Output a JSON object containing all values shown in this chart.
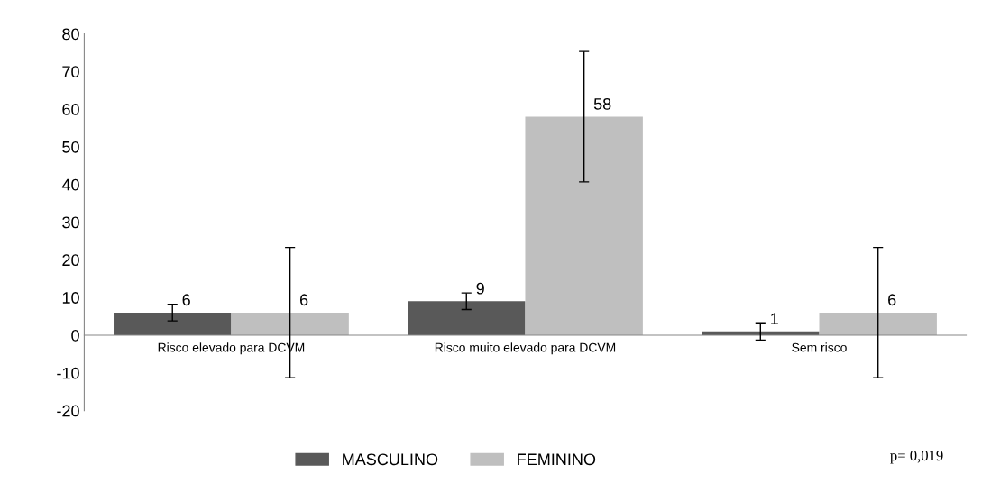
{
  "chart_data": {
    "type": "bar",
    "categories": [
      "Risco elevado para DCVM",
      "Risco muito elevado para DCVM",
      "Sem risco"
    ],
    "series": [
      {
        "name": "MASCULINO",
        "color": "#595959",
        "values": [
          6,
          9,
          1
        ],
        "errors": [
          2.2,
          2.2,
          2.3
        ]
      },
      {
        "name": "FEMININO",
        "color": "#bfbfbf",
        "values": [
          6,
          58,
          6
        ],
        "errors": [
          17.3,
          17.3,
          17.3
        ]
      }
    ],
    "ylim": [
      -20,
      80
    ],
    "yticks": [
      -20,
      -10,
      0,
      10,
      20,
      30,
      40,
      50,
      60,
      70,
      80
    ],
    "data_labels": true,
    "grid": false,
    "legend": "bottom",
    "annotations": [
      "p= 0,019"
    ]
  }
}
